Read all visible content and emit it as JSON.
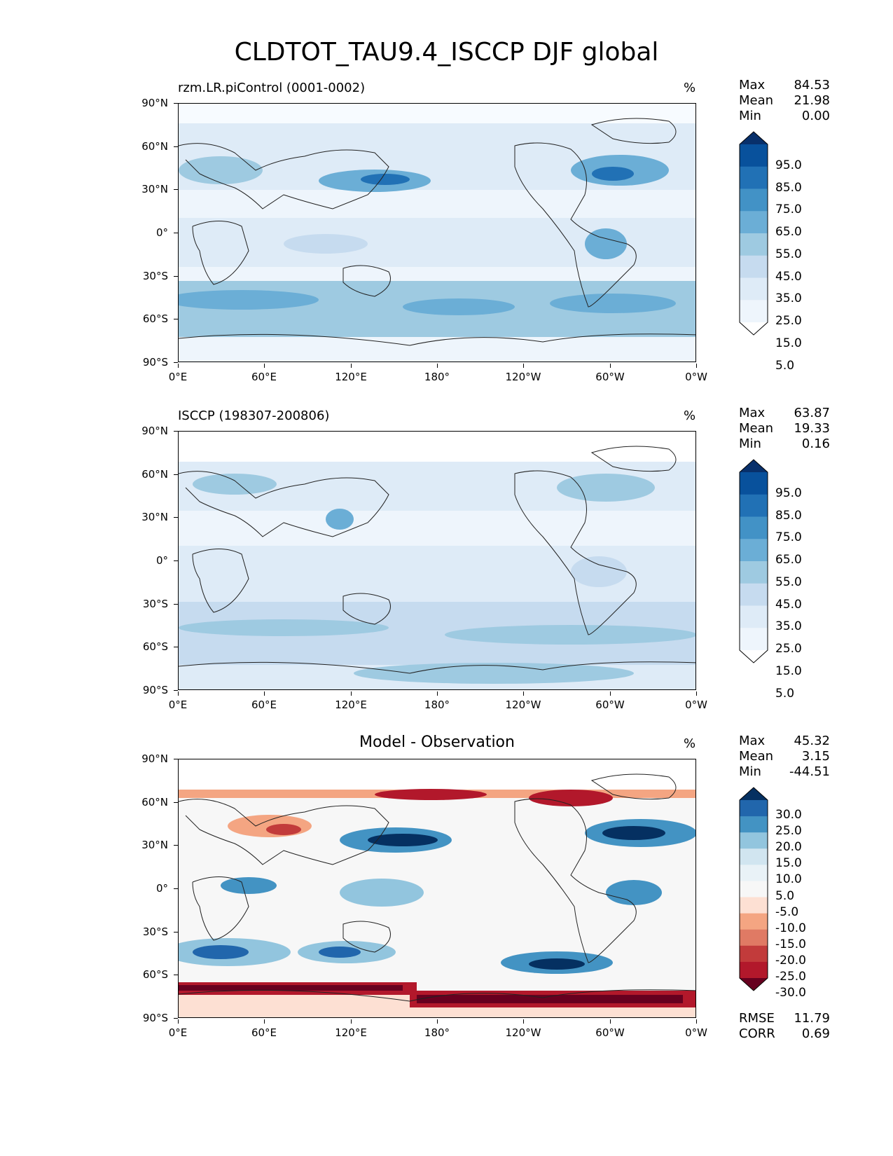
{
  "figure_title": "CLDTOT_TAU9.4_ISCCP DJF global",
  "axes": {
    "lat_ticks": [
      "90°N",
      "60°N",
      "30°N",
      "0°",
      "30°S",
      "60°S",
      "90°S"
    ],
    "lon_ticks": [
      "0°E",
      "60°E",
      "120°E",
      "180°",
      "120°W",
      "60°W",
      "0°W"
    ]
  },
  "panels": [
    {
      "id": "test",
      "title": "rzm.LR.piControl (0001-0002)",
      "units": "%",
      "stats": [
        [
          "Max",
          "84.53"
        ],
        [
          "Mean",
          "21.98"
        ],
        [
          "Min",
          "0.00"
        ]
      ],
      "colorbar_levels": [
        "95.0",
        "85.0",
        "75.0",
        "65.0",
        "55.0",
        "45.0",
        "35.0",
        "25.0",
        "15.0",
        "5.0"
      ],
      "colorbar_colors": [
        "#08306b",
        "#08519c",
        "#2171b5",
        "#4292c6",
        "#6baed6",
        "#9ecae1",
        "#c6dbef",
        "#deebf7",
        "#eef5fc",
        "#ffffff"
      ]
    },
    {
      "id": "reference",
      "title": "ISCCP (198307-200806)",
      "units": "%",
      "stats": [
        [
          "Max",
          "63.87"
        ],
        [
          "Mean",
          "19.33"
        ],
        [
          "Min",
          "0.16"
        ]
      ],
      "colorbar_levels": [
        "95.0",
        "85.0",
        "75.0",
        "65.0",
        "55.0",
        "45.0",
        "35.0",
        "25.0",
        "15.0",
        "5.0"
      ],
      "colorbar_colors": [
        "#08306b",
        "#08519c",
        "#2171b5",
        "#4292c6",
        "#6baed6",
        "#9ecae1",
        "#c6dbef",
        "#deebf7",
        "#eef5fc",
        "#ffffff"
      ]
    },
    {
      "id": "difference",
      "title": "Model - Observation",
      "units": "%",
      "stats": [
        [
          "Max",
          "45.32"
        ],
        [
          "Mean",
          "3.15"
        ],
        [
          "Min",
          "-44.51"
        ]
      ],
      "extra_stats": [
        [
          "RMSE",
          "11.79"
        ],
        [
          "CORR",
          "0.69"
        ]
      ],
      "colorbar_levels": [
        "30.0",
        "25.0",
        "20.0",
        "15.0",
        "10.0",
        "5.0",
        "-5.0",
        "-10.0",
        "-15.0",
        "-20.0",
        "-25.0",
        "-30.0"
      ],
      "colorbar_colors": [
        "#053061",
        "#2166ac",
        "#4393c3",
        "#92c5de",
        "#d1e5f0",
        "#e9f2f7",
        "#f7f7f7",
        "#fde0d3",
        "#f4a582",
        "#e07a64",
        "#c23b3b",
        "#b2182b",
        "#67001f"
      ]
    }
  ]
}
